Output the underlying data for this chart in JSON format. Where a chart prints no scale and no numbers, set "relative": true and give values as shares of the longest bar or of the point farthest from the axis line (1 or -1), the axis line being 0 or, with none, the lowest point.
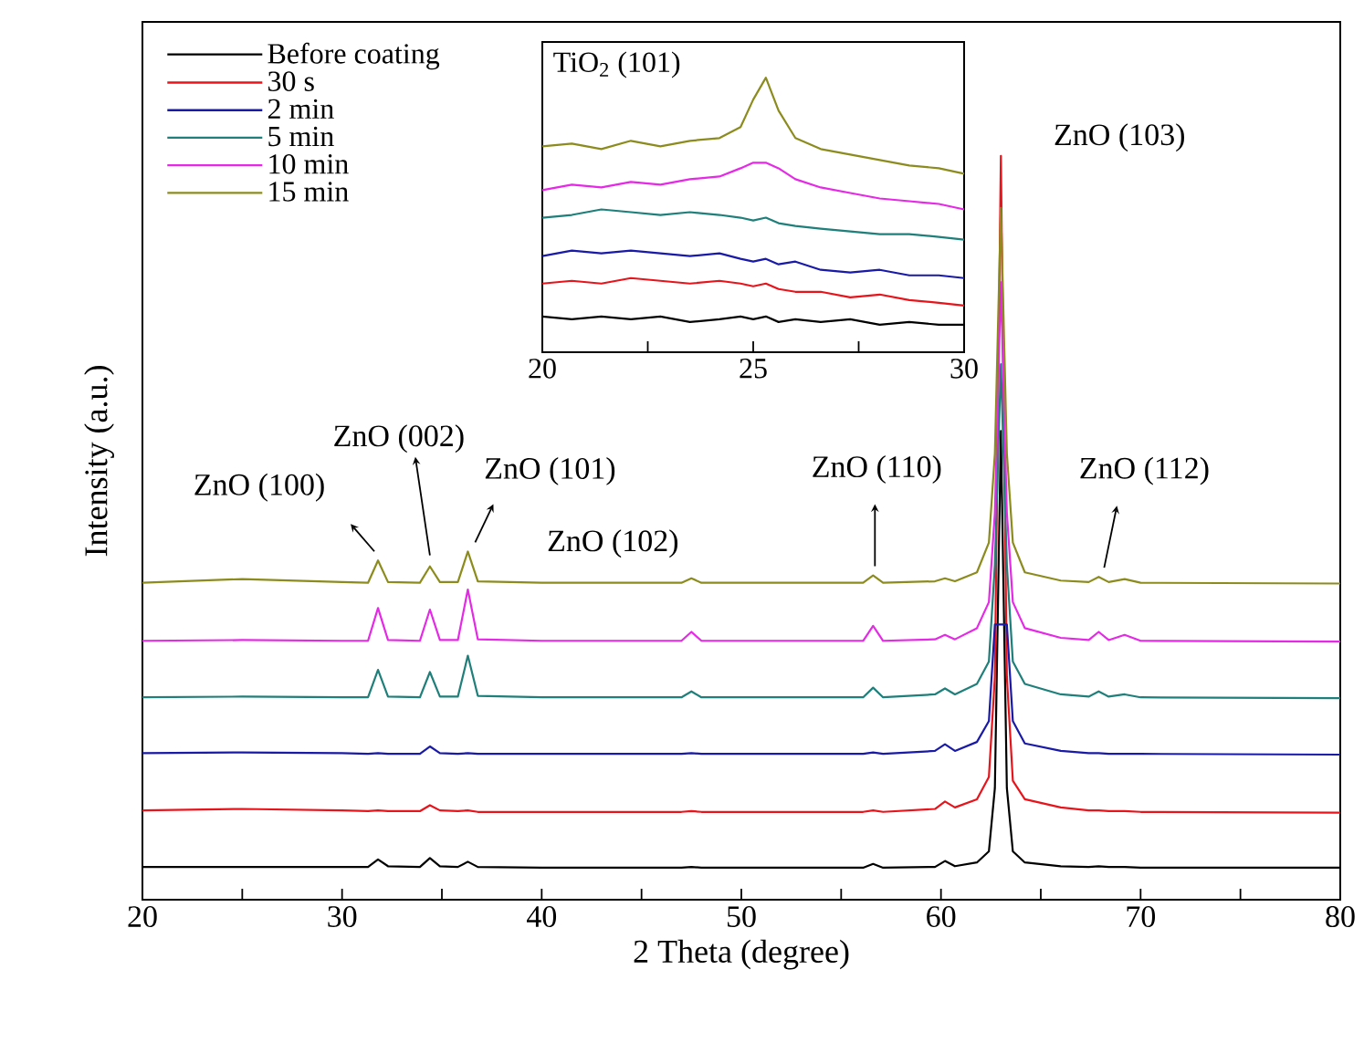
{
  "chart_data": [
    {
      "type": "line",
      "xlabel": "2 Theta (degree)",
      "ylabel": "Intensity (a.u.)",
      "relative": true,
      "legend": "top left",
      "xlim": [
        20,
        80
      ],
      "xticks": [
        20,
        {
          "value": 25,
          "label": null
        },
        30,
        {
          "value": 35,
          "label": null
        },
        40,
        {
          "value": 45,
          "label": null
        },
        50,
        {
          "value": 55,
          "label": null
        },
        60,
        {
          "value": 65,
          "label": null
        },
        70,
        {
          "value": 75,
          "label": null
        },
        80
      ],
      "x": [
        20,
        25,
        30,
        31.3,
        31.8,
        32.3,
        33.9,
        34.4,
        34.9,
        35.8,
        36.3,
        36.8,
        40,
        47.0,
        47.5,
        48.0,
        56.1,
        56.6,
        57.1,
        59.7,
        60.2,
        60.7,
        61.8,
        62.4,
        62.7,
        63.0,
        63.3,
        63.6,
        64.2,
        66.0,
        67.4,
        67.9,
        68.4,
        69.2,
        70,
        80
      ],
      "series": [
        {
          "name": "Before coating",
          "color": "#000000",
          "values": [
            0.044,
            0.044,
            0.044,
            0.044,
            0.054,
            0.045,
            0.044,
            0.056,
            0.045,
            0.044,
            0.051,
            0.044,
            0.043,
            0.043,
            0.044,
            0.043,
            0.043,
            0.048,
            0.043,
            0.044,
            0.052,
            0.045,
            0.05,
            0.065,
            0.15,
            0.63,
            0.15,
            0.065,
            0.05,
            0.045,
            0.044,
            0.045,
            0.044,
            0.044,
            0.043,
            0.043
          ]
        },
        {
          "name": "30 s",
          "color": "#e8141c",
          "values": [
            0.12,
            0.122,
            0.12,
            0.119,
            0.12,
            0.119,
            0.119,
            0.127,
            0.12,
            0.119,
            0.12,
            0.118,
            0.118,
            0.118,
            0.119,
            0.118,
            0.118,
            0.12,
            0.118,
            0.122,
            0.132,
            0.124,
            0.135,
            0.165,
            0.3,
            1.0,
            0.3,
            0.16,
            0.135,
            0.124,
            0.12,
            0.12,
            0.119,
            0.119,
            0.118,
            0.117
          ]
        },
        {
          "name": "2 min",
          "color": "#1a1aa8",
          "values": [
            0.197,
            0.198,
            0.197,
            0.196,
            0.197,
            0.196,
            0.196,
            0.206,
            0.197,
            0.196,
            0.197,
            0.196,
            0.196,
            0.196,
            0.197,
            0.196,
            0.196,
            0.198,
            0.196,
            0.2,
            0.209,
            0.2,
            0.212,
            0.24,
            0.37,
            null,
            0.37,
            0.24,
            0.21,
            0.2,
            0.197,
            0.197,
            0.196,
            0.196,
            0.196,
            0.195
          ]
        },
        {
          "name": "5 min",
          "color": "#1f7f7a",
          "values": [
            0.272,
            0.273,
            0.272,
            0.272,
            0.309,
            0.273,
            0.272,
            0.306,
            0.273,
            0.273,
            0.328,
            0.274,
            0.272,
            0.272,
            0.28,
            0.272,
            0.272,
            0.285,
            0.272,
            0.276,
            0.284,
            0.276,
            0.29,
            0.32,
            0.45,
            0.72,
            0.45,
            0.32,
            0.29,
            0.276,
            0.273,
            0.28,
            0.273,
            0.276,
            0.272,
            0.271
          ]
        },
        {
          "name": "10 min",
          "color": "#e629e6",
          "values": [
            0.348,
            0.349,
            0.348,
            0.348,
            0.392,
            0.349,
            0.348,
            0.39,
            0.349,
            0.349,
            0.417,
            0.35,
            0.348,
            0.348,
            0.36,
            0.348,
            0.348,
            0.368,
            0.348,
            0.35,
            0.356,
            0.35,
            0.365,
            0.4,
            0.52,
            0.83,
            0.52,
            0.4,
            0.365,
            0.352,
            0.349,
            0.36,
            0.349,
            0.356,
            0.348,
            0.347
          ]
        },
        {
          "name": "15 min",
          "color": "#8c8c1e",
          "values": [
            0.426,
            0.431,
            0.427,
            0.426,
            0.456,
            0.427,
            0.426,
            0.448,
            0.427,
            0.427,
            0.468,
            0.428,
            0.426,
            0.426,
            0.432,
            0.426,
            0.426,
            0.436,
            0.426,
            0.428,
            0.432,
            0.428,
            0.44,
            0.48,
            0.6,
            0.93,
            0.6,
            0.48,
            0.44,
            0.429,
            0.427,
            0.434,
            0.427,
            0.431,
            0.426,
            0.425
          ]
        }
      ],
      "annotations": [
        {
          "text": "ZnO (100)",
          "x": 31.8,
          "y": 0.456
        },
        {
          "text": "ZnO (002)",
          "x": 34.4,
          "y": 0.448
        },
        {
          "text": "ZnO (101)",
          "x": 36.3,
          "y": 0.468
        },
        {
          "text": "ZnO (102)",
          "x": 47.5,
          "y": 0.432
        },
        {
          "text": "ZnO (110)",
          "x": 56.6,
          "y": 0.436
        },
        {
          "text": "ZnO (112)",
          "x": 67.9,
          "y": 0.434
        },
        {
          "text": "ZnO (103)",
          "x": 63.0,
          "y": 1.0
        }
      ]
    },
    {
      "type": "line",
      "relative": true,
      "xlim": [
        20,
        30
      ],
      "xticks": [
        20,
        {
          "value": 22.5,
          "label": null
        },
        25,
        {
          "value": 27.5,
          "label": null
        },
        30
      ],
      "x": [
        20,
        20.7,
        21.4,
        22.1,
        22.8,
        23.5,
        24.2,
        24.7,
        25.0,
        25.3,
        25.6,
        26.0,
        26.6,
        27.3,
        28.0,
        28.7,
        29.4,
        30
      ],
      "series": [
        {
          "color": "#000000",
          "values": [
            0.13,
            0.12,
            0.13,
            0.12,
            0.13,
            0.11,
            0.12,
            0.13,
            0.12,
            0.13,
            0.11,
            0.12,
            0.11,
            0.12,
            0.1,
            0.11,
            0.1,
            0.1
          ]
        },
        {
          "color": "#e8141c",
          "values": [
            0.25,
            0.26,
            0.25,
            0.27,
            0.26,
            0.25,
            0.26,
            0.25,
            0.24,
            0.25,
            0.23,
            0.22,
            0.22,
            0.2,
            0.21,
            0.19,
            0.18,
            0.17
          ]
        },
        {
          "color": "#1a1aa8",
          "values": [
            0.35,
            0.37,
            0.36,
            0.37,
            0.36,
            0.35,
            0.36,
            0.34,
            0.33,
            0.34,
            0.32,
            0.33,
            0.3,
            0.29,
            0.3,
            0.28,
            0.28,
            0.27
          ]
        },
        {
          "color": "#1f7f7a",
          "values": [
            0.49,
            0.5,
            0.52,
            0.51,
            0.5,
            0.51,
            0.5,
            0.49,
            0.48,
            0.49,
            0.47,
            0.46,
            0.45,
            0.44,
            0.43,
            0.43,
            0.42,
            0.41
          ]
        },
        {
          "color": "#e629e6",
          "values": [
            0.59,
            0.61,
            0.6,
            0.62,
            0.61,
            0.63,
            0.64,
            0.67,
            0.69,
            0.69,
            0.67,
            0.63,
            0.6,
            0.58,
            0.56,
            0.55,
            0.54,
            0.52
          ]
        },
        {
          "color": "#8c8c1e",
          "values": [
            0.75,
            0.76,
            0.74,
            0.77,
            0.75,
            0.77,
            0.78,
            0.82,
            0.92,
            1.0,
            0.88,
            0.78,
            0.74,
            0.72,
            0.7,
            0.68,
            0.67,
            0.65
          ]
        }
      ],
      "annotations": [
        "TiO$_{2}$ (101)"
      ]
    }
  ]
}
